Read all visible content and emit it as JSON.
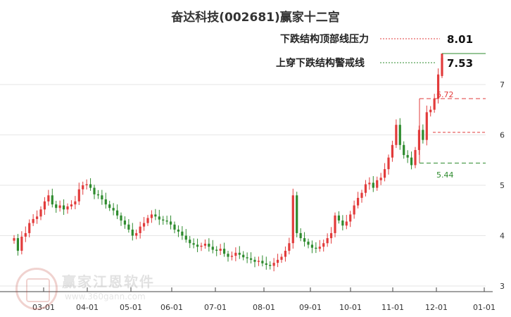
{
  "chart_data": {
    "type": "candlestick",
    "title": "奋达科技(002681)赢家十二宫",
    "xlabels": [
      "03-01",
      "04-01",
      "05-01",
      "06-01",
      "07-01",
      "08-01",
      "09-01",
      "10-01",
      "11-01",
      "12-01",
      "01-01"
    ],
    "y_ticks": [
      "7",
      "6",
      "5",
      "4",
      "3"
    ],
    "ylim": [
      3,
      7.5
    ],
    "grid": true,
    "annotations": {
      "pressure": {
        "label": "下跌结构顶部线压力",
        "value": "8.01",
        "color": "#e23b3b"
      },
      "warning": {
        "label": "上穿下跌结构警戒线",
        "value": "7.53",
        "color": "#2e8b2e"
      },
      "box_high": {
        "value": "6.72",
        "color": "#e23b3b"
      },
      "box_low": {
        "value": "5.44",
        "color": "#2e8b2e"
      }
    },
    "up_color": "#e23b3b",
    "down_color": "#2e8b2e",
    "series_close": [
      3.95,
      3.7,
      3.98,
      4.05,
      4.25,
      4.33,
      4.38,
      4.52,
      4.68,
      4.8,
      4.62,
      4.55,
      4.6,
      4.52,
      4.58,
      4.62,
      4.68,
      4.92,
      5.0,
      5.02,
      4.95,
      4.82,
      4.8,
      4.72,
      4.62,
      4.55,
      4.5,
      4.4,
      4.3,
      4.22,
      4.12,
      4.0,
      4.05,
      4.18,
      4.25,
      4.35,
      4.42,
      4.38,
      4.32,
      4.3,
      4.28,
      4.22,
      4.12,
      4.08,
      4.0,
      3.92,
      3.85,
      3.82,
      3.78,
      3.8,
      3.84,
      3.78,
      3.72,
      3.7,
      3.74,
      3.64,
      3.58,
      3.6,
      3.66,
      3.62,
      3.57,
      3.55,
      3.52,
      3.48,
      3.5,
      3.45,
      3.42,
      3.4,
      3.46,
      3.52,
      3.58,
      3.7,
      3.85,
      4.8,
      4.05,
      3.95,
      3.88,
      3.82,
      3.76,
      3.74,
      3.78,
      3.85,
      3.95,
      4.05,
      4.4,
      4.3,
      4.2,
      4.28,
      4.42,
      4.6,
      4.75,
      4.85,
      5.02,
      5.05,
      4.95,
      5.1,
      5.15,
      5.32,
      5.55,
      5.8,
      6.2,
      5.8,
      5.6,
      5.55,
      5.4,
      5.7,
      6.1,
      5.9,
      6.45,
      6.5,
      6.72,
      7.2,
      7.53
    ],
    "x_start": "2024-02-20",
    "x_end": "2025-01-01"
  },
  "watermark": {
    "text": "赢家江恩软件",
    "url": "www.360gann.com"
  }
}
